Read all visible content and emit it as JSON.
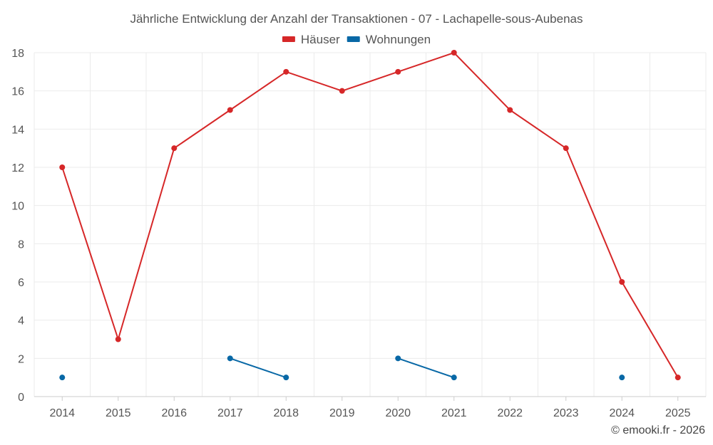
{
  "chart_data": {
    "type": "line",
    "title": "Jährliche Entwicklung der Anzahl der Transaktionen - 07 - Lachapelle-sous-Aubenas",
    "categories": [
      "2014",
      "2015",
      "2016",
      "2017",
      "2018",
      "2019",
      "2020",
      "2021",
      "2022",
      "2023",
      "2024",
      "2025"
    ],
    "ylim": [
      0,
      18
    ],
    "yticks": [
      0,
      2,
      4,
      6,
      8,
      10,
      12,
      14,
      16,
      18
    ],
    "grid": true,
    "legend_position": "top-center",
    "series": [
      {
        "name": "Häuser",
        "color": "#d62728",
        "values": [
          12,
          3,
          13,
          15,
          17,
          16,
          17,
          18,
          15,
          13,
          6,
          1
        ]
      },
      {
        "name": "Wohnungen",
        "color": "#0868a6",
        "values": [
          1,
          null,
          null,
          2,
          1,
          null,
          2,
          1,
          null,
          null,
          1,
          null
        ]
      }
    ]
  },
  "credit": "© emooki.fr - 2026"
}
